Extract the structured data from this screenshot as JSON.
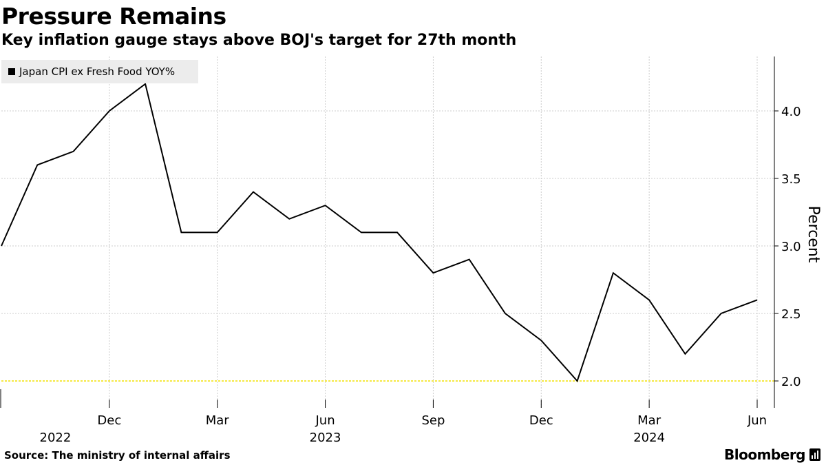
{
  "header": {
    "title": "Pressure Remains",
    "subtitle": "Key inflation gauge stays above BOJ's target for 27th month"
  },
  "legend": {
    "label": "Japan CPI ex Fresh Food YOY%"
  },
  "footer": {
    "source": "Source: The ministry of internal affairs",
    "brand": "Bloomberg"
  },
  "colors": {
    "line": "#000000",
    "target": "#f2e000",
    "grid": "#cccccc"
  },
  "chart_data": {
    "type": "line",
    "title": "Pressure Remains",
    "subtitle": "Key inflation gauge stays above BOJ's target for 27th month",
    "ylabel": "Percent",
    "xlabel": "",
    "ylim": [
      1.8,
      4.4
    ],
    "yticks": [
      2.0,
      2.5,
      3.0,
      3.5,
      4.0
    ],
    "ytick_labels": [
      "2.0",
      "2.5",
      "3.0",
      "3.5",
      "4.0"
    ],
    "x": [
      "2022-09",
      "2022-10",
      "2022-11",
      "2022-12",
      "2023-01",
      "2023-02",
      "2023-03",
      "2023-04",
      "2023-05",
      "2023-06",
      "2023-07",
      "2023-08",
      "2023-09",
      "2023-10",
      "2023-11",
      "2023-12",
      "2024-01",
      "2024-02",
      "2024-03",
      "2024-04",
      "2024-05",
      "2024-06"
    ],
    "series": [
      {
        "name": "Japan CPI ex Fresh Food YOY%",
        "values": [
          3.0,
          3.6,
          3.7,
          4.0,
          4.2,
          3.1,
          3.1,
          3.4,
          3.2,
          3.3,
          3.1,
          3.1,
          2.8,
          2.9,
          2.5,
          2.3,
          2.0,
          2.8,
          2.6,
          2.2,
          2.5,
          2.6
        ]
      }
    ],
    "reference_line": {
      "value": 2.0,
      "label": "BOJ target"
    },
    "xtick_months": [
      {
        "index": 3,
        "label": "Dec"
      },
      {
        "index": 6,
        "label": "Mar"
      },
      {
        "index": 9,
        "label": "Jun"
      },
      {
        "index": 12,
        "label": "Sep"
      },
      {
        "index": 15,
        "label": "Dec"
      },
      {
        "index": 18,
        "label": "Mar"
      },
      {
        "index": 21,
        "label": "Jun"
      }
    ],
    "xtick_years": [
      {
        "index": 1.5,
        "label": "2022"
      },
      {
        "index": 9,
        "label": "2023"
      },
      {
        "index": 18,
        "label": "2024"
      }
    ],
    "grid": true,
    "legend_position": "top-left"
  }
}
